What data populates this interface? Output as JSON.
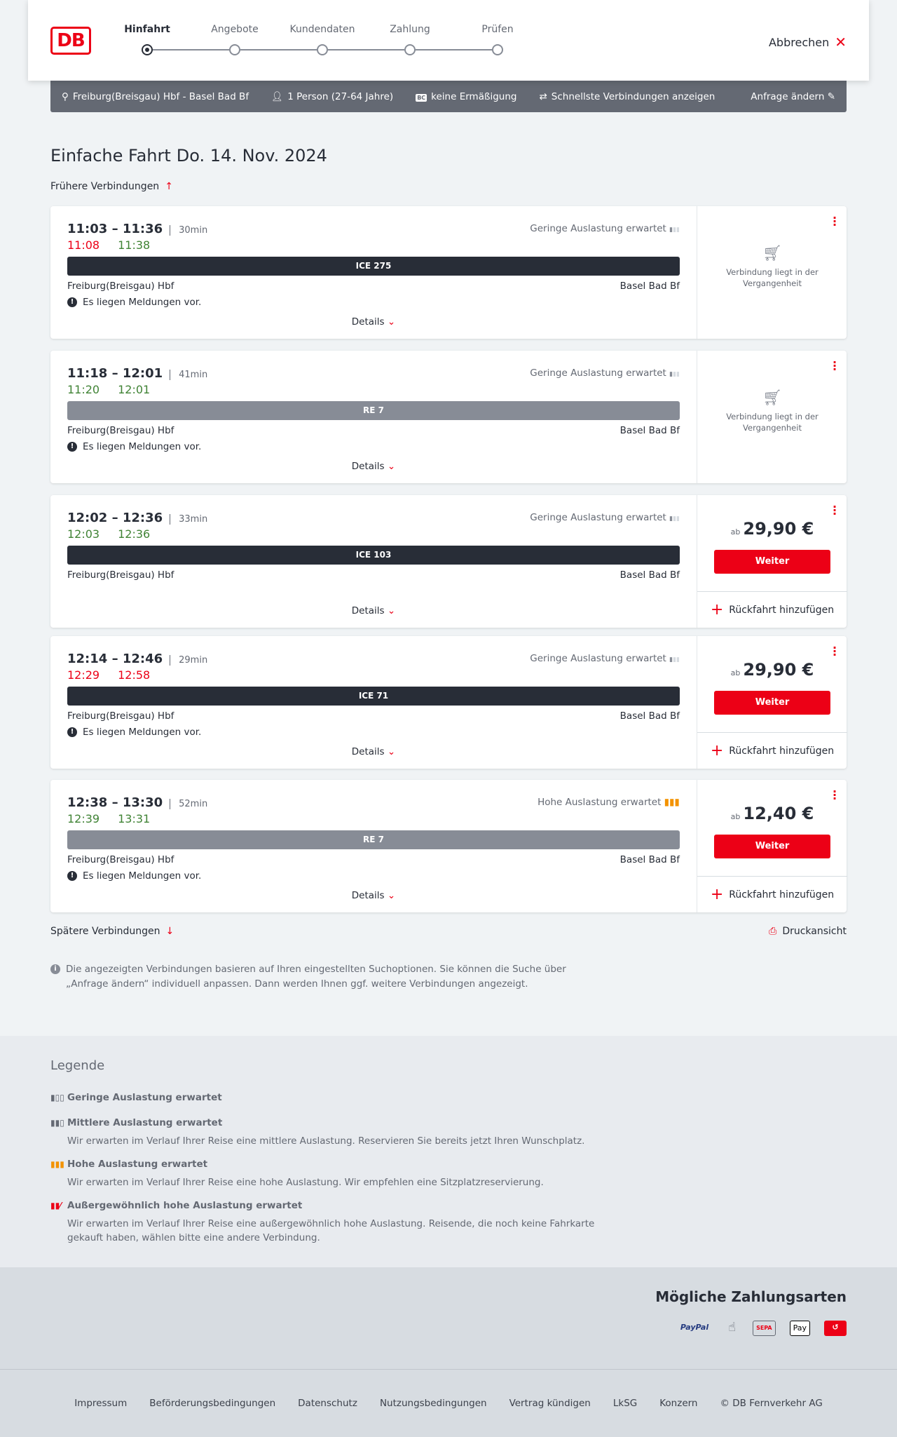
{
  "header": {
    "logo": "DB",
    "steps": [
      "Hinfahrt",
      "Angebote",
      "Kundendaten",
      "Zahlung",
      "Prüfen"
    ],
    "active_step": 0,
    "cancel": "Abbrechen"
  },
  "search": {
    "route": "Freiburg(Breisgau) Hbf - Basel Bad Bf",
    "persons": "1 Person (27-64 Jahre)",
    "bc_badge": "BC",
    "discount": "keine Ermäßigung",
    "fastest": "Schnellste Verbindungen anzeigen",
    "change": "Anfrage ändern"
  },
  "title": {
    "type": "Einfache Fahrt",
    "date": "Do. 14. Nov. 2024"
  },
  "earlier": "Frühere Verbindungen",
  "later": "Spätere Verbindungen",
  "print": "Druckansicht",
  "connections": [
    {
      "times": "11:03 – 11:36",
      "duration": "30min",
      "rt_dep": "11:08",
      "rt_dep_color": "red",
      "rt_arr": "11:38",
      "rt_arr_color": "green",
      "train": "ICE 275",
      "train_color": "#282d37",
      "from": "Freiburg(Breisgau) Hbf",
      "to": "Basel Bad Bf",
      "load": "Geringe Auslastung erwartet",
      "message": "Es liegen Meldungen vor.",
      "details": "Details",
      "past": "Verbindung liegt in der Vergangenheit"
    },
    {
      "times": "11:18 – 12:01",
      "duration": "41min",
      "rt_dep": "11:20",
      "rt_dep_color": "green",
      "rt_arr": "12:01",
      "rt_arr_color": "green",
      "train": "RE 7",
      "train_color": "#878c96",
      "from": "Freiburg(Breisgau) Hbf",
      "to": "Basel Bad Bf",
      "load": "Geringe Auslastung erwartet",
      "message": "Es liegen Meldungen vor.",
      "details": "Details",
      "past": "Verbindung liegt in der Vergangenheit"
    },
    {
      "times": "12:02 – 12:36",
      "duration": "33min",
      "rt_dep": "12:03",
      "rt_dep_color": "green",
      "rt_arr": "12:36",
      "rt_arr_color": "green",
      "train": "ICE 103",
      "train_color": "#282d37",
      "from": "Freiburg(Breisgau) Hbf",
      "to": "Basel Bad Bf",
      "load": "Geringe Auslastung erwartet",
      "details": "Details",
      "price_prefix": "ab",
      "price": "29,90 €",
      "button": "Weiter",
      "return": "Rückfahrt hinzufügen"
    },
    {
      "times": "12:14 – 12:46",
      "duration": "29min",
      "rt_dep": "12:29",
      "rt_dep_color": "red",
      "rt_arr": "12:58",
      "rt_arr_color": "red",
      "train": "ICE 71",
      "train_color": "#282d37",
      "from": "Freiburg(Breisgau) Hbf",
      "to": "Basel Bad Bf",
      "load": "Geringe Auslastung erwartet",
      "message": "Es liegen Meldungen vor.",
      "details": "Details",
      "price_prefix": "ab",
      "price": "29,90 €",
      "button": "Weiter",
      "return": "Rückfahrt hinzufügen"
    },
    {
      "times": "12:38 – 13:30",
      "duration": "52min",
      "rt_dep": "12:39",
      "rt_dep_color": "green",
      "rt_arr": "13:31",
      "rt_arr_color": "green",
      "train": "RE 7",
      "train_color": "#878c96",
      "from": "Freiburg(Breisgau) Hbf",
      "to": "Basel Bad Bf",
      "load": "Hohe Auslastung erwartet",
      "load_high": true,
      "message": "Es liegen Meldungen vor.",
      "details": "Details",
      "price_prefix": "ab",
      "price": "12,40 €",
      "button": "Weiter",
      "return": "Rückfahrt hinzufügen"
    }
  ],
  "info": "Die angezeigten Verbindungen basieren auf Ihren eingestellten Suchoptionen. Sie können die Suche über „Anfrage ändern“ individuell anpassen. Dann werden Ihnen ggf. weitere Verbindungen angezeigt.",
  "legend": {
    "title": "Legende",
    "items": [
      {
        "label": "Geringe Auslastung erwartet",
        "text": "",
        "color": "#646973"
      },
      {
        "label": "Mittlere Auslastung erwartet",
        "text": "Wir erwarten im Verlauf Ihrer Reise eine mittlere Auslastung. Reservieren Sie bereits jetzt Ihren Wunschplatz.",
        "color": "#646973"
      },
      {
        "label": "Hohe Auslastung erwartet",
        "text": "Wir erwarten im Verlauf Ihrer Reise eine hohe Auslastung. Wir empfehlen eine Sitzplatzreservierung.",
        "color": "#f39200"
      },
      {
        "label": "Außergewöhnlich hohe Auslastung erwartet",
        "text": "Wir erwarten im Verlauf Ihrer Reise eine außergewöhnlich hohe Auslastung. Reisende, die noch keine Fahrkarte gekauft haben, wählen bitte eine andere Verbindung.",
        "color": "#ec0016"
      }
    ]
  },
  "payment": {
    "title": "Mögliche Zahlungsarten",
    "methods": [
      "PayPal",
      "Kreditkarte",
      "SEPA",
      "Pay",
      "DB"
    ]
  },
  "footer": [
    "Impressum",
    "Beförderungsbedingungen",
    "Datenschutz",
    "Nutzungsbedingungen",
    "Vertrag kündigen",
    "LkSG",
    "Konzern",
    "© DB Fernverkehr AG"
  ]
}
